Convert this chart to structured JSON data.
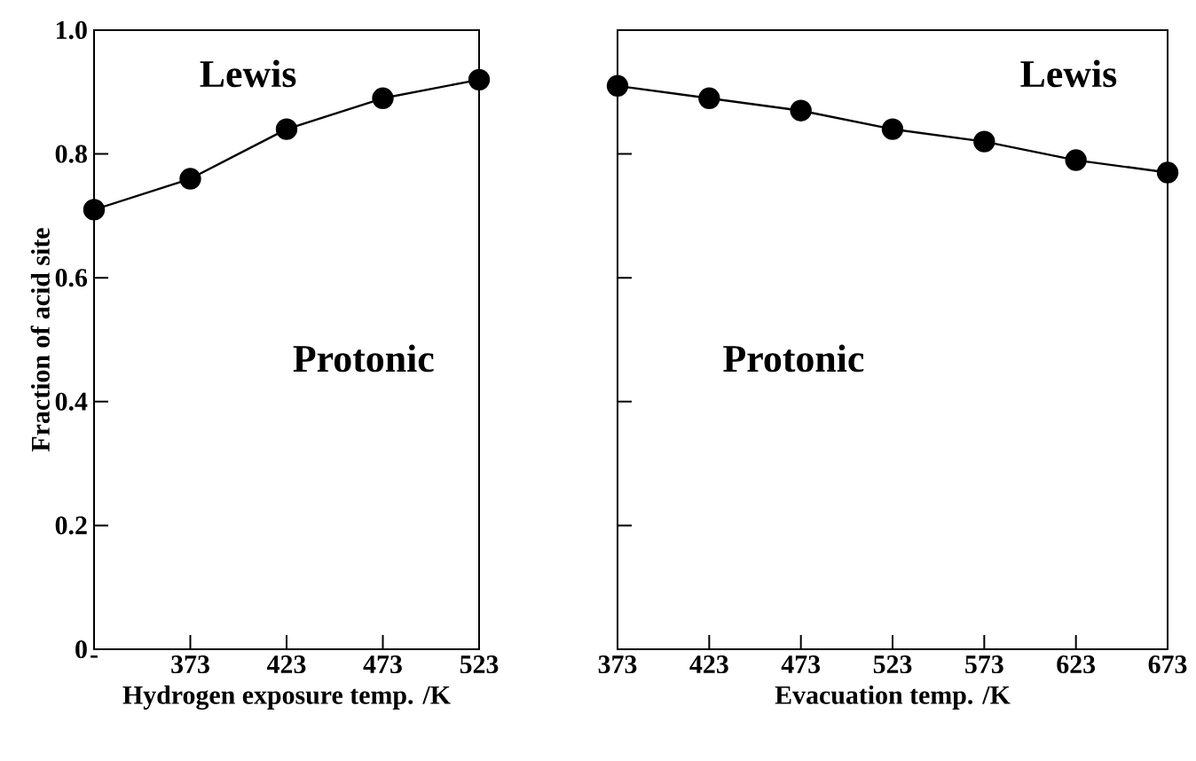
{
  "chart_data": [
    {
      "type": "line",
      "xlabel": "Hydrogen exposure temp. /K",
      "ylabel": "Fraction of acid site",
      "categories": [
        "-",
        "373",
        "423",
        "473",
        "523"
      ],
      "series": [
        {
          "color": "#000000",
          "values": [
            0.71,
            0.76,
            0.84,
            0.89,
            0.92
          ]
        }
      ],
      "ylim": [
        0,
        1
      ],
      "yticks": [
        0,
        0.2,
        0.4,
        0.6,
        0.8,
        {
          "value": 1,
          "label": "1.0"
        }
      ],
      "marker": "circle",
      "line_style": "solid",
      "annotations": [
        "Lewis",
        "Protonic"
      ]
    },
    {
      "type": "line",
      "xlabel": "Evacuation temp. /K",
      "x": [
        373,
        423,
        473,
        523,
        573,
        623,
        673
      ],
      "series": [
        {
          "color": "#000000",
          "values": [
            0.91,
            0.89,
            0.87,
            0.84,
            0.82,
            0.79,
            0.77
          ]
        }
      ],
      "xlim": [
        373,
        673
      ],
      "xticks": [
        373,
        423,
        473,
        523,
        573,
        623,
        673
      ],
      "ylim": [
        0,
        1
      ],
      "yticks": [
        0,
        0.2,
        0.4,
        0.6,
        0.8,
        1
      ],
      "tick_labels": "x",
      "marker": "circle",
      "line_style": "solid",
      "annotations": [
        "Lewis",
        "Protonic"
      ]
    }
  ]
}
